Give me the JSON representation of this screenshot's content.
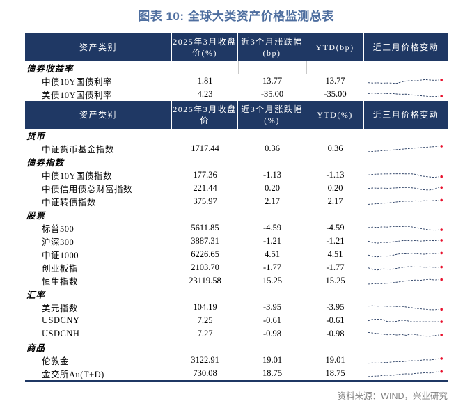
{
  "title": "图表 10: 全球大类资产价格监测总表",
  "source": "资料来源：WIND，兴业研究",
  "colors": {
    "header_bg": "#1F3864",
    "title_text": "#4E6E9F",
    "spark_line": "#24395F",
    "spark_dot": "#E8112D",
    "source_text": "#808080",
    "body_text": "#000000",
    "faint_rule": "#C9C9C9"
  },
  "chart_data": {
    "type": "table",
    "title": "图表 10: 全球大类资产价格监测总表",
    "sparkline_note": "近三月价格变动 column shows dashed navy sparklines with red end dot; values are normalized 0-100 trend shapes",
    "tables": [
      {
        "headers": [
          "资产类别",
          "2025年3月收盘\n价(%)",
          "近3个月涨跌幅\n(bp)",
          "YTD(bp)",
          "近三月价格变动"
        ],
        "unit": "bp",
        "sections": [
          {
            "name": "债券收益率",
            "show_column_rules": true,
            "rows": [
              {
                "label": "中债10Y国债利率",
                "close": "1.81",
                "chg": "13.77",
                "ytd": "13.77",
                "spark": [
                  36,
                  32,
                  34,
                  30,
                  33,
                  31,
                  28,
                  44,
                  54,
                  60,
                  56,
                  64,
                  70,
                  66,
                  62,
                  66
                ]
              },
              {
                "label": "美债10Y国债利率",
                "close": "4.23",
                "chg": "-35.00",
                "ytd": "-35.00",
                "spark": [
                  62,
                  68,
                  63,
                  66,
                  61,
                  64,
                  58,
                  54,
                  56,
                  48,
                  44,
                  38,
                  33,
                  29,
                  27,
                  32
                ]
              }
            ]
          }
        ]
      },
      {
        "headers": [
          "资产类别",
          "2025年3月收盘\n价",
          "近3个月涨跌幅\n(%)",
          "YTD(%)",
          "近三月价格变动"
        ],
        "unit": "%",
        "sections": [
          {
            "name": "货币",
            "show_column_rules": false,
            "rows": [
              {
                "label": "中证货币基金指数",
                "close": "1717.44",
                "chg": "0.36",
                "ytd": "0.36",
                "spark": [
                  18,
                  22,
                  26,
                  30,
                  34,
                  38,
                  43,
                  47,
                  52,
                  56,
                  61,
                  65,
                  69,
                  73,
                  77,
                  82
                ]
              }
            ]
          },
          {
            "name": "债券指数",
            "show_column_rules": false,
            "rows": [
              {
                "label": "中债10Y国债指数",
                "close": "177.36",
                "chg": "-1.13",
                "ytd": "-1.13",
                "spark": [
                  55,
                  62,
                  65,
                  66,
                  67,
                  68,
                  68,
                  69,
                  67,
                  68,
                  62,
                  45,
                  38,
                  33,
                  28,
                  36
                ]
              },
              {
                "label": "中债信用债总财富指数",
                "close": "221.44",
                "chg": "0.20",
                "ytd": "0.20",
                "spark": [
                  52,
                  58,
                  55,
                  57,
                  54,
                  56,
                  59,
                  62,
                  64,
                  61,
                  55,
                  42,
                  36,
                  34,
                  48,
                  64
                ]
              },
              {
                "label": "中证转债指数",
                "close": "375.97",
                "chg": "2.17",
                "ytd": "2.17",
                "spark": [
                  22,
                  26,
                  30,
                  34,
                  38,
                  44,
                  50,
                  55,
                  60,
                  57,
                  63,
                  59,
                  65,
                  61,
                  66,
                  70
                ]
              }
            ]
          },
          {
            "name": "股票",
            "show_column_rules": false,
            "rows": [
              {
                "label": "标普500",
                "close": "5611.85",
                "chg": "-4.59",
                "ytd": "-4.59",
                "spark": [
                  58,
                  64,
                  60,
                  66,
                  64,
                  70,
                  72,
                  69,
                  74,
                  68,
                  58,
                  48,
                  40,
                  32,
                  28,
                  33
                ]
              },
              {
                "label": "沪深300",
                "close": "3887.31",
                "chg": "-1.21",
                "ytd": "-1.21",
                "spark": [
                  55,
                  38,
                  33,
                  42,
                  40,
                  46,
                  52,
                  60,
                  64,
                  59,
                  62,
                  56,
                  60,
                  64,
                  60,
                  66
                ]
              },
              {
                "label": "中证1000",
                "close": "6226.65",
                "chg": "4.51",
                "ytd": "4.51",
                "spark": [
                  48,
                  32,
                  28,
                  38,
                  36,
                  42,
                  56,
                  64,
                  61,
                  67,
                  64,
                  60,
                  57,
                  68,
                  63,
                  70
                ]
              },
              {
                "label": "创业板指",
                "close": "2103.70",
                "chg": "-1.77",
                "ytd": "-1.77",
                "spark": [
                  52,
                  33,
                  28,
                  40,
                  37,
                  35,
                  46,
                  56,
                  62,
                  67,
                  61,
                  64,
                  58,
                  63,
                  57,
                  61
                ]
              },
              {
                "label": "恒生指数",
                "close": "23119.58",
                "chg": "15.25",
                "ytd": "15.25",
                "spark": [
                  18,
                  21,
                  24,
                  23,
                  28,
                  33,
                  40,
                  47,
                  54,
                  60,
                  64,
                  61,
                  68,
                  72,
                  65,
                  69
                ]
              }
            ]
          },
          {
            "name": "汇率",
            "show_column_rules": false,
            "rows": [
              {
                "label": "美元指数",
                "close": "104.19",
                "chg": "-3.95",
                "ytd": "-3.95",
                "spark": [
                  68,
                  72,
                  67,
                  70,
                  65,
                  68,
                  63,
                  66,
                  58,
                  52,
                  42,
                  37,
                  32,
                  27,
                  26,
                  31
                ]
              },
              {
                "label": "USDCNY",
                "close": "7.25",
                "chg": "-0.61",
                "ytd": "-0.61",
                "spark": [
                  52,
                  70,
                  70,
                  68,
                  44,
                  40,
                  47,
                  58,
                  56,
                  41,
                  41,
                  41,
                  41,
                  41,
                  41,
                  41
                ]
              },
              {
                "label": "USDCNH",
                "close": "7.27",
                "chg": "-0.98",
                "ytd": "-0.98",
                "spark": [
                  70,
                  64,
                  58,
                  52,
                  44,
                  50,
                  41,
                  47,
                  38,
                  52,
                  47,
                  34,
                  29,
                  27,
                  34,
                  42
                ]
              }
            ]
          },
          {
            "name": "商品",
            "show_column_rules": false,
            "rows": [
              {
                "label": "伦敦金",
                "close": "3122.91",
                "chg": "19.01",
                "ytd": "19.01",
                "spark": [
                  20,
                  24,
                  22,
                  27,
                  30,
                  34,
                  40,
                  37,
                  44,
                  50,
                  47,
                  54,
                  60,
                  57,
                  65,
                  74
                ]
              },
              {
                "label": "金交所Au(T+D)",
                "close": "730.08",
                "chg": "18.75",
                "ytd": "18.75",
                "spark": [
                  18,
                  23,
                  25,
                  30,
                  34,
                  31,
                  40,
                  46,
                  50,
                  47,
                  55,
                  58,
                  62,
                  59,
                  68,
                  76
                ]
              }
            ]
          }
        ]
      }
    ]
  }
}
